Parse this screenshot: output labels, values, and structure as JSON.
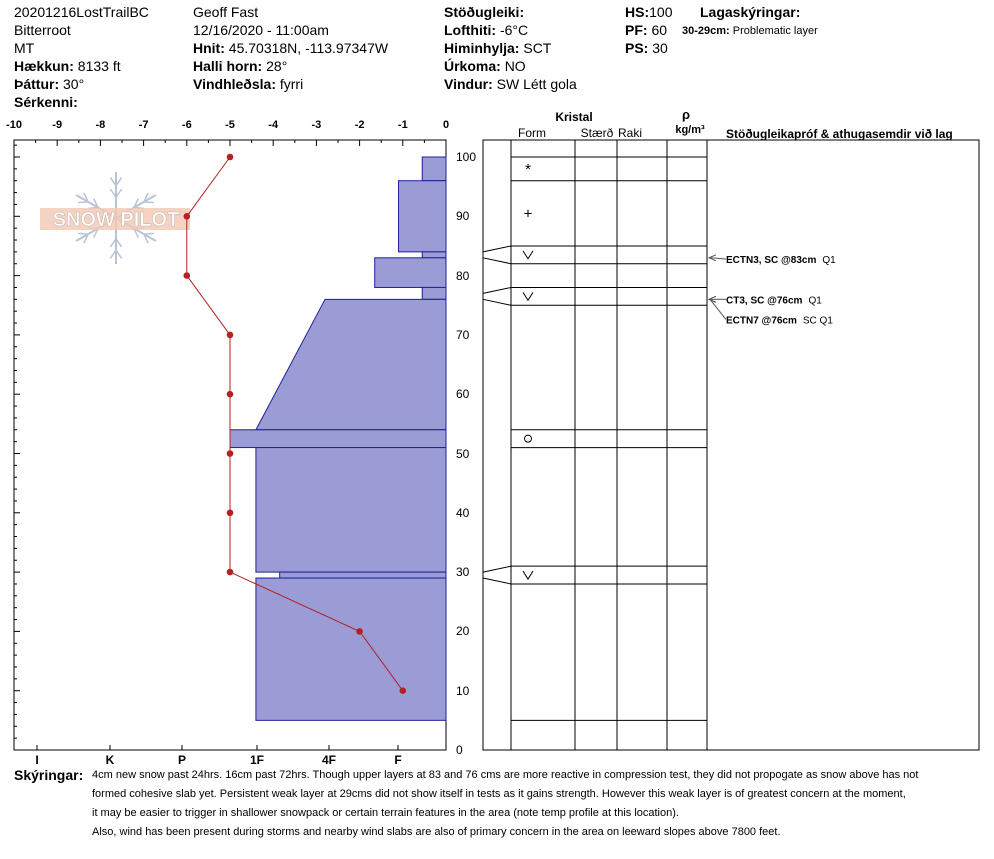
{
  "header": {
    "col1": {
      "title": "20201216LostTrailBC",
      "range": "Bitterroot",
      "state": "MT",
      "elevation_label": "Hækkun:",
      "elevation": "8133 ft",
      "aspect_label": "Þáttur:",
      "aspect": "30°",
      "features_label": "Sérkenni:"
    },
    "col2": {
      "observer": "Geoff Fast",
      "datetime": "12/16/2020 - 11:00am",
      "coords_label": "Hnit:",
      "coords": "45.70318N, -113.97347W",
      "slope_label": "Halli horn:",
      "slope": "28°",
      "wind_loading_label": "Vindhleðsla:",
      "wind_loading": "fyrri"
    },
    "col3": {
      "stability_label": "Stöðugleiki:",
      "air_temp_label": "Lofthiti:",
      "air_temp": "-6°C",
      "sky_label": "Himinhylja:",
      "sky": "SCT",
      "precip_label": "Úrkoma:",
      "precip": "NO",
      "wind_label": "Vindur:",
      "wind": "SW Létt gola"
    },
    "col4": {
      "hs_label": "HS:",
      "hs": "100",
      "pf_label": "PF:",
      "pf": "60",
      "ps_label": "PS:",
      "ps": "30"
    },
    "legend": {
      "title": "Lagaskýringar:",
      "entry_key": "30-29cm:",
      "entry_text": "Problematic layer"
    }
  },
  "columns": {
    "kristal": "Kristal",
    "form": "Form",
    "size": "Stærð",
    "moisture": "Raki",
    "rho": "ρ",
    "density_unit": "kg/m³",
    "tests": "Stöðugleikapróf & athugasemdir við lag"
  },
  "logo_text": "SNOW PILOT",
  "comments_label": "Skýringar:",
  "comments": [
    "4cm new snow past 24hrs. 16cm past 72hrs. Though upper layers at 83 and 76 cms are more reactive in compression test, they did not propogate as snow above has not",
    "formed cohesive slab yet. Persistent weak layer at 29cms did not show itself in tests as it gains strength. However this weak layer is of greatest concern at the moment,",
    "it may be easier to trigger in shallower snowpack or certain terrain features in the area (note temp profile at this location).",
    "Also, wind has been present during storms and nearby wind slabs are also of primary concern in the area on leeward slopes above 7800 feet."
  ],
  "colors": {
    "hardness_fill": "#9b9bd6",
    "hardness_stroke": "#1f1f99",
    "temp": "#b22222"
  },
  "chart_data": {
    "type": "snow-profile",
    "temp_axis": {
      "ticks": [
        "-10",
        "-9",
        "-8",
        "-7",
        "-6",
        "-5",
        "-4",
        "-3",
        "-2",
        "-1",
        "0"
      ],
      "range": [
        -10,
        0
      ]
    },
    "height_axis": {
      "ticks": [
        "0",
        "10",
        "20",
        "30",
        "40",
        "50",
        "60",
        "70",
        "80",
        "90",
        "100"
      ],
      "range": [
        0,
        105
      ]
    },
    "hardness_axis": {
      "ticks": [
        "I",
        "K",
        "P",
        "1F",
        "4F",
        "F"
      ],
      "tick_values": [
        4.9,
        3.2,
        1.5,
        0.35,
        -1.3,
        -2.7
      ],
      "tick_labels_order": "left-to-right"
    },
    "temperature_profile": [
      {
        "h": 100,
        "t": -5
      },
      {
        "h": 90,
        "t": -6
      },
      {
        "h": 80,
        "t": -6
      },
      {
        "h": 70,
        "t": -5
      },
      {
        "h": 60,
        "t": -5
      },
      {
        "h": 50,
        "t": -5
      },
      {
        "h": 40,
        "t": -5
      },
      {
        "h": 30,
        "t": -5
      },
      {
        "h": 20,
        "t": -2
      },
      {
        "h": 10,
        "t": -1
      }
    ],
    "hardness_layers": [
      {
        "top": 100,
        "bottom": 96,
        "left_t": -0.55
      },
      {
        "top": 96,
        "bottom": 84,
        "left_t": -1.1
      },
      {
        "top": 84,
        "bottom": 83,
        "left_t": -0.55
      },
      {
        "top": 83,
        "bottom": 78,
        "left_t": -1.65
      },
      {
        "top": 78,
        "bottom": 76,
        "left_t": -0.55
      },
      {
        "top": 76,
        "bottom": 54,
        "left_t_top": -2.8,
        "left_t_bottom": -4.4
      },
      {
        "top": 54,
        "bottom": 51,
        "left_t": -5.0
      },
      {
        "top": 51,
        "bottom": 30,
        "left_t": -4.4
      },
      {
        "top": 30,
        "bottom": 29,
        "left_t": -3.85
      },
      {
        "top": 29,
        "bottom": 5,
        "left_t": -4.4
      }
    ],
    "layer_boundaries": [
      100,
      96,
      85,
      82,
      78,
      75,
      54,
      51,
      31,
      28,
      5
    ],
    "grain_forms": [
      {
        "h": 98,
        "symbol": "*"
      },
      {
        "h": 90.5,
        "symbol": "+"
      },
      {
        "h": 83.5,
        "symbol": "V"
      },
      {
        "h": 76.5,
        "symbol": "V"
      },
      {
        "h": 52.5,
        "symbol": "○"
      },
      {
        "h": 29.5,
        "symbol": "V"
      }
    ],
    "stability_tests": [
      {
        "h": 83,
        "label": "ECTN3, SC @83cm",
        "quality": "Q1",
        "text_h": 82.8
      },
      {
        "h": 76,
        "label": "CT3, SC @76cm",
        "quality": "Q1",
        "text_h": 76.0
      },
      {
        "h": 76,
        "label": "ECTN7 @76cm",
        "quality": "SC Q1",
        "text_h": 72.6
      }
    ]
  }
}
